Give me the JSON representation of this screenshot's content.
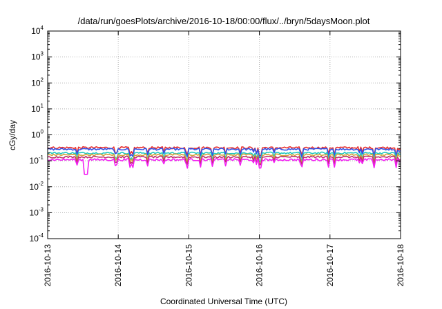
{
  "chart_data": {
    "type": "line",
    "title": "/data/run/goesPlots/archive/2016-10-18/00:00/flux/../bryn/5daysMoon.plot",
    "xlabel": "Coordinated Universal Time (UTC)",
    "ylabel": "cGy/day",
    "yscale": "log",
    "ylim": [
      0.0001,
      10000
    ],
    "ylim_exponents": [
      -4,
      4
    ],
    "y_ticks": [
      {
        "base": "10",
        "exp": "-4"
      },
      {
        "base": "10",
        "exp": "-3"
      },
      {
        "base": "10",
        "exp": "-2"
      },
      {
        "base": "10",
        "exp": "-1"
      },
      {
        "base": "10",
        "exp": "0"
      },
      {
        "base": "10",
        "exp": "1"
      },
      {
        "base": "10",
        "exp": "2"
      },
      {
        "base": "10",
        "exp": "3"
      },
      {
        "base": "10",
        "exp": "4"
      }
    ],
    "x_ticks": [
      "2016-10-13",
      "2016-10-14",
      "2016-10-15",
      "2016-10-16",
      "2016-10-17",
      "2016-10-18"
    ],
    "xlim": [
      "2016-10-13",
      "2016-10-18"
    ],
    "grid": true,
    "legend": "none",
    "series": [
      {
        "color": "#e8302e",
        "level": 0.32,
        "spread": 0.09
      },
      {
        "color": "#3050e8",
        "level": 0.28,
        "spread": 0.09
      },
      {
        "color": "#21c8c0",
        "level": 0.2,
        "spread": 0.08
      },
      {
        "color": "#d2a23a",
        "level": 0.17,
        "spread": 0.08
      },
      {
        "color": "#c0306e",
        "level": 0.14,
        "spread": 0.08
      },
      {
        "color": "#f21ff2",
        "level": 0.11,
        "spread": 0.1
      }
    ],
    "notable_minimum": {
      "x": "2016-10-13T13:00",
      "y": 0.03
    }
  }
}
